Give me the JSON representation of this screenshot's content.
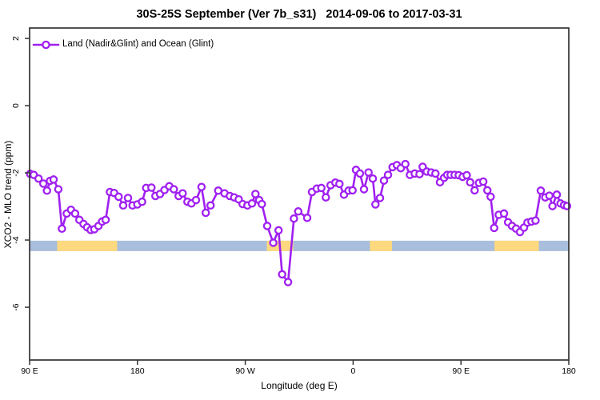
{
  "chart_data": {
    "type": "line",
    "title": "30S-25S September (Ver 7b_s31)   2014-09-06 to 2017-03-31",
    "xlabel": "Longitude (deg E)",
    "ylabel": "XCO2 - MLO trend (ppm)",
    "legend": {
      "label": "Land (Nadir&Glint) and Ocean (Glint)",
      "position": "top-left",
      "marker": "open-circle"
    },
    "colors": {
      "series": "#A020F0",
      "marker_fill": "#ffffff",
      "band_base": "#A9BEDC",
      "band_highlight": "#FFD97F",
      "frame": "#333333",
      "text": "#000000"
    },
    "x_axis": {
      "min": 90,
      "max": 540,
      "note": "longitude axis wraps: 90E to 180 going eastward (450 deg span)",
      "ticks": [
        {
          "pos": 90,
          "label": "90 E"
        },
        {
          "pos": 180,
          "label": "180"
        },
        {
          "pos": 270,
          "label": "90 W"
        },
        {
          "pos": 360,
          "label": "0"
        },
        {
          "pos": 450,
          "label": "90 E"
        },
        {
          "pos": 540,
          "label": "180"
        }
      ]
    },
    "y_axis": {
      "min": -7.57,
      "max": 2.31,
      "ticks": [
        {
          "pos": 2,
          "label": "2"
        },
        {
          "pos": 0,
          "label": "0"
        },
        {
          "pos": -2,
          "label": "-2"
        },
        {
          "pos": -4,
          "label": "-4"
        },
        {
          "pos": -6,
          "label": "-6"
        }
      ]
    },
    "band": {
      "y_top": -4.02,
      "y_bottom": -4.33,
      "base_range": [
        90,
        540
      ],
      "highlight_segments": [
        [
          113,
          163
        ],
        [
          288,
          310
        ],
        [
          374,
          392.5
        ],
        [
          478,
          515
        ]
      ]
    },
    "points": [
      [
        90.5,
        -2.03
      ],
      [
        93.5,
        -2.06
      ],
      [
        97.5,
        -2.17
      ],
      [
        101.5,
        -2.32
      ],
      [
        104.5,
        -2.53
      ],
      [
        107,
        -2.24
      ],
      [
        110,
        -2.2
      ],
      [
        114,
        -2.49
      ],
      [
        117,
        -3.66
      ],
      [
        121,
        -3.21
      ],
      [
        124.5,
        -3.1
      ],
      [
        128,
        -3.21
      ],
      [
        131.5,
        -3.4
      ],
      [
        135,
        -3.52
      ],
      [
        138,
        -3.62
      ],
      [
        141,
        -3.7
      ],
      [
        144,
        -3.68
      ],
      [
        147.5,
        -3.58
      ],
      [
        150.5,
        -3.45
      ],
      [
        153.5,
        -3.4
      ],
      [
        157,
        -2.57
      ],
      [
        160.5,
        -2.6
      ],
      [
        164.3,
        -2.71
      ],
      [
        168.1,
        -2.97
      ],
      [
        172.1,
        -2.75
      ],
      [
        175.9,
        -2.97
      ],
      [
        179.9,
        -2.94
      ],
      [
        183.9,
        -2.86
      ],
      [
        187.3,
        -2.45
      ],
      [
        191.7,
        -2.44
      ],
      [
        195,
        -2.69
      ],
      [
        198.8,
        -2.63
      ],
      [
        202.6,
        -2.51
      ],
      [
        206.6,
        -2.4
      ],
      [
        210.4,
        -2.49
      ],
      [
        214.4,
        -2.69
      ],
      [
        217.7,
        -2.61
      ],
      [
        221.7,
        -2.86
      ],
      [
        225.1,
        -2.91
      ],
      [
        228.9,
        -2.81
      ],
      [
        233.5,
        -2.42
      ],
      [
        237,
        -3.19
      ],
      [
        241,
        -2.97
      ],
      [
        247.4,
        -2.53
      ],
      [
        252.7,
        -2.61
      ],
      [
        257.1,
        -2.69
      ],
      [
        260.7,
        -2.73
      ],
      [
        264.5,
        -2.79
      ],
      [
        267.8,
        -2.93
      ],
      [
        271.8,
        -2.97
      ],
      [
        275.6,
        -2.91
      ],
      [
        278.5,
        -2.63
      ],
      [
        281.6,
        -2.81
      ],
      [
        283.8,
        -2.93
      ],
      [
        288.3,
        -3.58
      ],
      [
        293.4,
        -4.08
      ],
      [
        297.8,
        -3.71
      ],
      [
        300.8,
        -5.02
      ],
      [
        305.7,
        -5.25
      ],
      [
        310.6,
        -3.36
      ],
      [
        314.2,
        -3.15
      ],
      [
        321.7,
        -3.34
      ],
      [
        325.7,
        -2.57
      ],
      [
        329.7,
        -2.47
      ],
      [
        333.5,
        -2.45
      ],
      [
        337.2,
        -2.73
      ],
      [
        341.2,
        -2.37
      ],
      [
        345.2,
        -2.29
      ],
      [
        348.6,
        -2.33
      ],
      [
        352.4,
        -2.65
      ],
      [
        356.2,
        -2.53
      ],
      [
        359.5,
        -2.52
      ],
      [
        362.4,
        -1.91
      ],
      [
        365.7,
        -2.02
      ],
      [
        369.1,
        -2.49
      ],
      [
        372.9,
        -1.99
      ],
      [
        376.4,
        -2.17
      ],
      [
        378.6,
        -2.94
      ],
      [
        382.4,
        -2.75
      ],
      [
        385.8,
        -2.23
      ],
      [
        389.1,
        -2.06
      ],
      [
        392.9,
        -1.83
      ],
      [
        396.5,
        -1.77
      ],
      [
        399.8,
        -1.86
      ],
      [
        403.6,
        -1.74
      ],
      [
        407.4,
        -2.06
      ],
      [
        411.4,
        -2.02
      ],
      [
        415.4,
        -2.04
      ],
      [
        418,
        -1.82
      ],
      [
        421.4,
        -1.96
      ],
      [
        425.2,
        -1.99
      ],
      [
        428.7,
        -2.02
      ],
      [
        432.5,
        -2.28
      ],
      [
        435.9,
        -2.15
      ],
      [
        438.5,
        -2.06
      ],
      [
        441.4,
        -2.06
      ],
      [
        444.7,
        -2.06
      ],
      [
        448.1,
        -2.07
      ],
      [
        451.4,
        -2.12
      ],
      [
        454.8,
        -2.07
      ],
      [
        457.7,
        -2.28
      ],
      [
        461.4,
        -2.52
      ],
      [
        465,
        -2.3
      ],
      [
        468.6,
        -2.26
      ],
      [
        472,
        -2.52
      ],
      [
        474.8,
        -2.71
      ],
      [
        477.7,
        -3.64
      ],
      [
        481.5,
        -3.25
      ],
      [
        485.9,
        -3.21
      ],
      [
        489.3,
        -3.47
      ],
      [
        492.6,
        -3.58
      ],
      [
        496,
        -3.66
      ],
      [
        499.3,
        -3.76
      ],
      [
        502.6,
        -3.63
      ],
      [
        505.5,
        -3.48
      ],
      [
        508.8,
        -3.45
      ],
      [
        512.2,
        -3.42
      ],
      [
        516.6,
        -2.53
      ],
      [
        520.4,
        -2.73
      ],
      [
        523.8,
        -2.68
      ],
      [
        526.4,
        -2.99
      ],
      [
        530,
        -2.65
      ],
      [
        533.1,
        -2.91
      ],
      [
        536,
        -2.96
      ],
      [
        538.5,
        -2.99
      ]
    ],
    "layout": {
      "plot_left": 37,
      "plot_top": 35,
      "plot_right": 711,
      "plot_bottom": 450,
      "grid": false
    }
  }
}
